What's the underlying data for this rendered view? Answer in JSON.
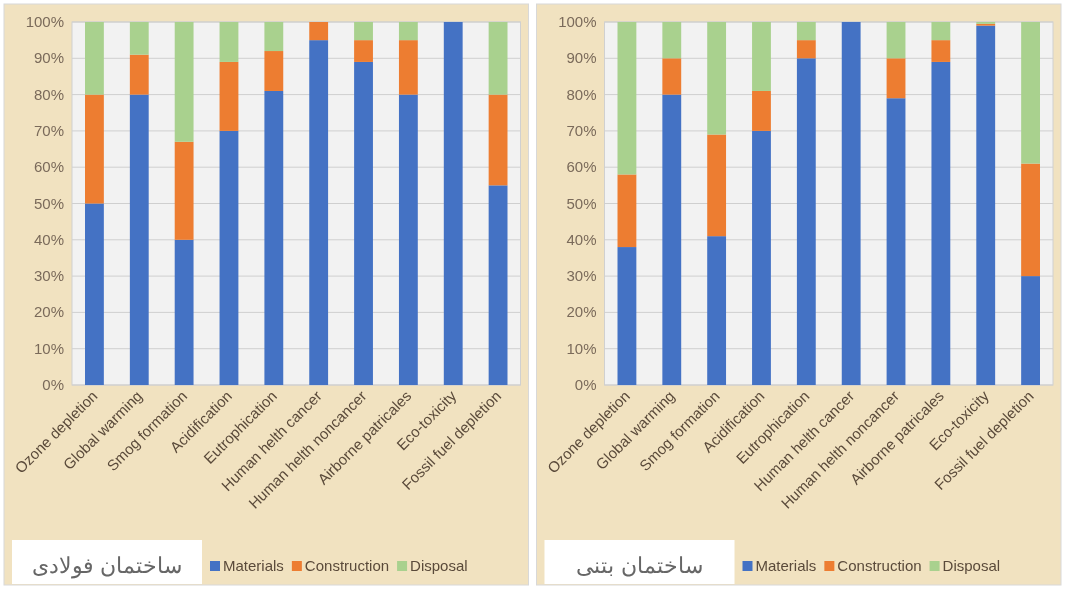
{
  "chart_data": [
    {
      "type": "bar",
      "stacked": true,
      "title": "ساختمان فولادی",
      "categories": [
        "Ozone depletion",
        "Global warming",
        "Smog formation",
        "Acidification",
        "Eutrophication",
        "Human helth cancer",
        "Human helth noncancer",
        "Airborne patricales",
        "Eco-toxicity",
        "Fossil fuel depletion"
      ],
      "series": [
        {
          "name": "Materials",
          "color": "#4472c4",
          "values": [
            50,
            80,
            40,
            70,
            81,
            95,
            89,
            80,
            100,
            55
          ]
        },
        {
          "name": "Construction",
          "color": "#ed7d31",
          "values": [
            30,
            11,
            27,
            19,
            11,
            5,
            6,
            15,
            0,
            25
          ]
        },
        {
          "name": "Disposal",
          "color": "#a9d18e",
          "values": [
            20,
            9,
            33,
            11,
            8,
            0,
            5,
            5,
            0,
            20
          ]
        }
      ],
      "ylim": [
        0,
        100
      ],
      "yticks": [
        {
          "value": 0,
          "label": "0%"
        },
        {
          "value": 10,
          "label": "10%"
        },
        {
          "value": 20,
          "label": "20%"
        },
        {
          "value": 30,
          "label": "30%"
        },
        {
          "value": 40,
          "label": "40%"
        },
        {
          "value": 50,
          "label": "50%"
        },
        {
          "value": 60,
          "label": "60%"
        },
        {
          "value": 70,
          "label": "70%"
        },
        {
          "value": 80,
          "label": "80%"
        },
        {
          "value": 90,
          "label": "90%"
        },
        {
          "value": 100,
          "label": "100%"
        }
      ],
      "grid": "y",
      "legend": "bottom"
    },
    {
      "type": "bar",
      "stacked": true,
      "title": "ساختمان بتنی",
      "categories": [
        "Ozone depletion",
        "Global warming",
        "Smog formation",
        "Acidification",
        "Eutrophication",
        "Human helth cancer",
        "Human helth noncancer",
        "Airborne patricales",
        "Eco-toxicity",
        "Fossil fuel depletion"
      ],
      "series": [
        {
          "name": "Materials",
          "color": "#4472c4",
          "values": [
            38,
            80,
            41,
            70,
            90,
            100,
            79,
            89,
            99,
            30
          ]
        },
        {
          "name": "Construction",
          "color": "#ed7d31",
          "values": [
            20,
            10,
            28,
            11,
            5,
            0,
            11,
            6,
            0.5,
            31
          ]
        },
        {
          "name": "Disposal",
          "color": "#a9d18e",
          "values": [
            42,
            10,
            31,
            19,
            5,
            0,
            10,
            5,
            0.5,
            39
          ]
        }
      ],
      "ylim": [
        0,
        100
      ],
      "yticks": [
        {
          "value": 0,
          "label": "0%"
        },
        {
          "value": 10,
          "label": "10%"
        },
        {
          "value": 20,
          "label": "20%"
        },
        {
          "value": 30,
          "label": "30%"
        },
        {
          "value": 40,
          "label": "40%"
        },
        {
          "value": 50,
          "label": "50%"
        },
        {
          "value": 60,
          "label": "60%"
        },
        {
          "value": 70,
          "label": "70%"
        },
        {
          "value": 80,
          "label": "80%"
        },
        {
          "value": 90,
          "label": "90%"
        },
        {
          "value": 100,
          "label": "100%"
        }
      ],
      "grid": "y",
      "legend": "bottom"
    }
  ]
}
